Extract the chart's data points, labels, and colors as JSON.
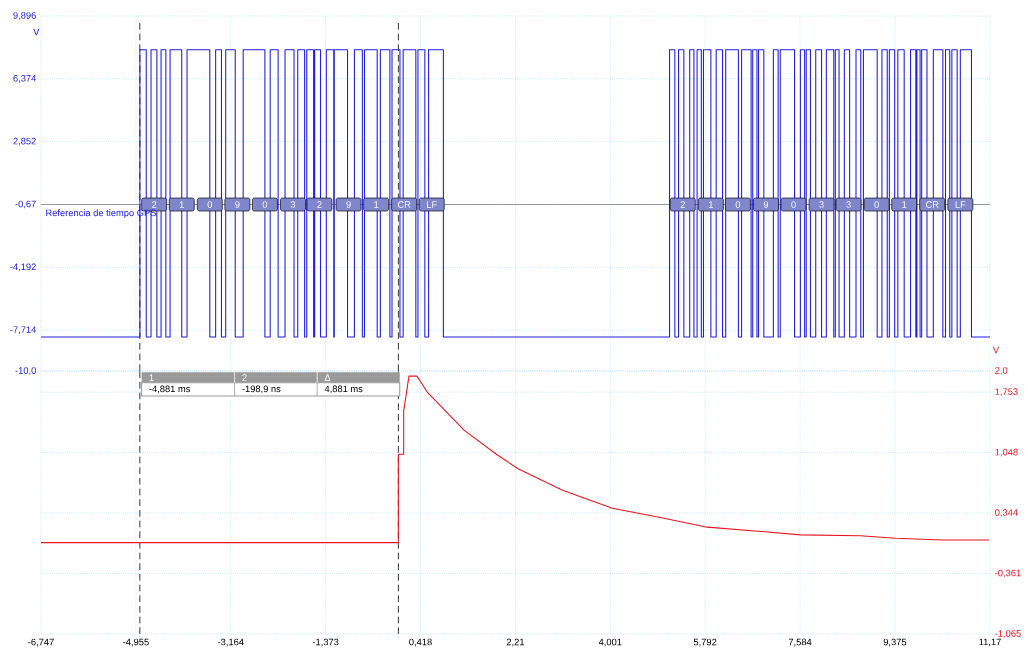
{
  "chart_data": [
    {
      "type": "step",
      "ylabel": "V",
      "grid": true,
      "tick_labels": "y",
      "xlim": [
        -6.747,
        11.17
      ],
      "xticks": [
        {
          "value": -6.747,
          "label": null
        },
        {
          "value": -4.955,
          "label": null
        },
        {
          "value": -3.164,
          "label": null
        },
        {
          "value": -1.373,
          "label": null
        },
        {
          "value": 0.418,
          "label": null
        },
        {
          "value": 2.21,
          "label": null
        },
        {
          "value": 4.001,
          "label": null
        },
        {
          "value": 5.792,
          "label": null
        },
        {
          "value": 7.584,
          "label": null
        },
        {
          "value": 9.375,
          "label": null
        },
        {
          "value": 11.17,
          "label": null
        }
      ],
      "ylim": [
        -10.0,
        9.896
      ],
      "yticks": [
        {
          "value": 9.896,
          "label": "9,896"
        },
        {
          "value": 6.374,
          "label": "6,374"
        },
        {
          "value": 2.852,
          "label": "2,852"
        },
        {
          "value": -0.67,
          "label": "-0,67"
        },
        {
          "value": -4.192,
          "label": "-4,192"
        },
        {
          "value": -7.714,
          "label": "-7,714"
        },
        {
          "value": -10.0,
          "label": "-10,0"
        }
      ],
      "ref_lines": [
        {
          "axis": "y",
          "value": -0.67,
          "color": "#808080",
          "line_style": "solid"
        },
        {
          "axis": "x",
          "value": -4.881,
          "color": "#000000",
          "line_style": "dashed"
        },
        {
          "axis": "x",
          "value": -0.0001989,
          "color": "#000000",
          "line_style": "dashed"
        }
      ],
      "series": [
        {
          "color": "#1e1ee6",
          "x": [
            -6.747,
            -4.88,
            -4.76,
            -4.67,
            -4.56,
            -4.48,
            -4.39,
            -4.31,
            -4.09,
            -3.99,
            -3.56,
            -3.45,
            -3.34,
            -3.26,
            -3.08,
            -2.93,
            -2.52,
            -2.42,
            -2.27,
            -2.14,
            -1.97,
            -1.9,
            -1.77,
            -1.73,
            -1.6,
            -1.58,
            -1.47,
            -1.36,
            -1.22,
            -1.21,
            -0.96,
            -0.83,
            -0.68,
            -0.64,
            -0.4,
            -0.34,
            -0.16,
            -0.12,
            0.03,
            0.09,
            0.33,
            0.37,
            0.5,
            0.57,
            0.85,
            5.12,
            5.22,
            5.29,
            5.39,
            5.5,
            5.58,
            5.64,
            5.72,
            5.76,
            5.9,
            6.0,
            6.12,
            6.18,
            6.42,
            6.48,
            6.66,
            6.69,
            6.77,
            6.8,
            6.9,
            7.08,
            7.17,
            7.21,
            7.48,
            7.59,
            7.67,
            7.7,
            7.78,
            7.88,
            7.99,
            8.08,
            8.22,
            8.25,
            8.32,
            8.42,
            8.52,
            8.64,
            8.73,
            8.78,
            9.04,
            9.13,
            9.23,
            9.27,
            9.37,
            9.43,
            9.55,
            9.67,
            9.77,
            9.79,
            9.85,
            9.88,
            9.98,
            10.1,
            10.28,
            10.33,
            10.41,
            10.45,
            10.55,
            10.61,
            10.82,
            11.17
          ],
          "values": [
            -8.1,
            8.0,
            -8.1,
            8.0,
            -8.1,
            8.0,
            -8.1,
            8.0,
            -8.1,
            8.0,
            -8.1,
            8.0,
            -8.1,
            8.0,
            -8.1,
            8.0,
            -8.1,
            8.0,
            -8.1,
            8.0,
            -8.1,
            8.0,
            -8.1,
            8.0,
            -8.1,
            8.0,
            -8.1,
            8.0,
            -8.1,
            8.0,
            -8.1,
            8.0,
            -8.1,
            8.0,
            -8.1,
            8.0,
            -8.1,
            8.0,
            -8.1,
            8.0,
            -8.1,
            8.0,
            -8.1,
            8.0,
            -8.1,
            8.0,
            -8.1,
            8.0,
            -8.1,
            8.0,
            -8.1,
            8.0,
            -8.1,
            8.0,
            -8.1,
            8.0,
            -8.1,
            8.0,
            -8.1,
            8.0,
            -8.1,
            8.0,
            -8.1,
            8.0,
            -8.1,
            8.0,
            -8.1,
            8.0,
            -8.1,
            8.0,
            -8.1,
            8.0,
            -8.1,
            8.0,
            -8.1,
            8.0,
            -8.1,
            8.0,
            -8.1,
            8.0,
            -8.1,
            8.0,
            -8.1,
            8.0,
            -8.1,
            8.0,
            -8.1,
            8.0,
            -8.1,
            8.0,
            -8.1,
            8.0,
            -8.1,
            8.0,
            -8.1,
            8.0,
            -8.1,
            8.0,
            -8.1,
            8.0,
            -8.1,
            8.0,
            -8.1,
            8.0,
            -8.1,
            -8.1
          ]
        }
      ],
      "annotations": [
        "Referencia de tiempo GPS",
        {
          "text": "2",
          "x": -4.61,
          "y": -0.67
        },
        {
          "text": "1",
          "x": -4.09,
          "y": -0.67
        },
        {
          "text": "0",
          "x": -3.56,
          "y": -0.67
        },
        {
          "text": "9",
          "x": -3.04,
          "y": -0.67
        },
        {
          "text": "0",
          "x": -2.52,
          "y": -0.67
        },
        {
          "text": "3",
          "x": -1.99,
          "y": -0.67
        },
        {
          "text": "2",
          "x": -1.49,
          "y": -0.67
        },
        {
          "text": "9",
          "x": -0.94,
          "y": -0.67
        },
        {
          "text": "1",
          "x": -0.42,
          "y": -0.67
        },
        {
          "text": "CR",
          "x": 0.11,
          "y": -0.67
        },
        {
          "text": "LF",
          "x": 0.63,
          "y": -0.67
        },
        {
          "text": "2",
          "x": 5.37,
          "y": -0.67
        },
        {
          "text": "1",
          "x": 5.9,
          "y": -0.67
        },
        {
          "text": "0",
          "x": 6.41,
          "y": -0.67
        },
        {
          "text": "9",
          "x": 6.94,
          "y": -0.67
        },
        {
          "text": "0",
          "x": 7.46,
          "y": -0.67
        },
        {
          "text": "3",
          "x": 7.99,
          "y": -0.67
        },
        {
          "text": "3",
          "x": 8.5,
          "y": -0.67
        },
        {
          "text": "0",
          "x": 9.03,
          "y": -0.67
        },
        {
          "text": "1",
          "x": 9.55,
          "y": -0.67
        },
        {
          "text": "CR",
          "x": 10.08,
          "y": -0.67
        },
        {
          "text": "LF",
          "x": 10.61,
          "y": -0.67
        }
      ]
    },
    {
      "type": "line",
      "y2label": "V",
      "grid": true,
      "xlim": [
        -6.747,
        11.17
      ],
      "xticks": [
        {
          "value": -6.747,
          "label": "-6,747"
        },
        {
          "value": -4.955,
          "label": "-4,955"
        },
        {
          "value": -3.164,
          "label": "-3,164"
        },
        {
          "value": -1.373,
          "label": "-1,373"
        },
        {
          "value": 0.418,
          "label": "0,418"
        },
        {
          "value": 2.21,
          "label": "2,21"
        },
        {
          "value": 4.001,
          "label": "4,001"
        },
        {
          "value": 5.792,
          "label": "5,792"
        },
        {
          "value": 7.584,
          "label": "7,584"
        },
        {
          "value": 9.375,
          "label": "9,375"
        },
        {
          "value": 11.17,
          "label": "11,17"
        }
      ],
      "y2lim": [
        -1.065,
        2.0
      ],
      "y2ticks": [
        {
          "value": 2.0,
          "label": "2,0"
        },
        {
          "value": 1.753,
          "label": "1,753"
        },
        {
          "value": 1.048,
          "label": "1,048"
        },
        {
          "value": 0.344,
          "label": "0,344"
        },
        {
          "value": -0.361,
          "label": "-0,361"
        },
        {
          "value": -1.065,
          "label": "-1,065"
        }
      ],
      "ref_lines": [
        {
          "axis": "x",
          "value": -4.881,
          "color": "#000000",
          "line_style": "dashed"
        },
        {
          "axis": "x",
          "value": -0.0001989,
          "color": "#000000",
          "line_style": "dashed"
        }
      ],
      "series": [
        {
          "color": "#e8141e",
          "axis": "y2",
          "x": [
            -6.747,
            0.0,
            0.0,
            0.1,
            0.1,
            0.2,
            0.35,
            0.55,
            1.24,
            1.85,
            2.26,
            3.1,
            4.04,
            4.97,
            5.83,
            6.85,
            7.59,
            8.72,
            9.39,
            10.27,
            11.15
          ],
          "values": [
            0.0,
            0.0,
            1.03,
            1.03,
            1.53,
            1.94,
            1.94,
            1.75,
            1.31,
            1.03,
            0.86,
            0.61,
            0.4,
            0.29,
            0.18,
            0.13,
            0.09,
            0.08,
            0.05,
            0.03,
            0.03
          ]
        }
      ],
      "annotations": [
        "1",
        "2",
        "Δ",
        "-4,881 ms",
        "-198,9 ns",
        "4,881 ms"
      ]
    }
  ]
}
